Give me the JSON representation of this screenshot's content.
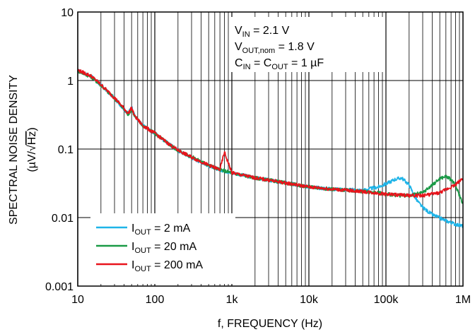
{
  "chart_data": {
    "type": "line",
    "xlabel": "f, FREQUENCY (Hz)",
    "ylabel_line1": "SPECTRAL NOISE DENSITY",
    "ylabel_line2_prefix": "(µV/√",
    "ylabel_line2_rad": "Hz",
    "ylabel_line2_suffix": ")",
    "x_scale": "log",
    "y_scale": "log",
    "xlim": [
      10,
      1000000
    ],
    "ylim": [
      0.001,
      10
    ],
    "x_ticks": [
      10,
      100,
      1000,
      10000,
      100000,
      1000000
    ],
    "x_tick_labels": [
      "10",
      "100",
      "1k",
      "10k",
      "100k",
      "1M"
    ],
    "y_ticks": [
      0.001,
      0.01,
      0.1,
      1,
      10
    ],
    "y_tick_labels": [
      "0.001",
      "0.01",
      "0.1",
      "1",
      "10"
    ],
    "grid": true,
    "legend_position": "bottom-left",
    "conditions": {
      "vin": {
        "v": "V",
        "sub": "IN",
        "rest": " = 2.1 V"
      },
      "vout": {
        "v": "V",
        "sub": "OUT,nom",
        "rest": " = 1.8 V"
      },
      "cap": {
        "c1": "C",
        "sub1": "IN",
        "mid": " = C",
        "sub2": "OUT",
        "rest": " = 1 µF"
      }
    },
    "series": [
      {
        "name_main": "I",
        "name_sub": "OUT",
        "name_rest": " = 2 mA",
        "color": "#1fb4e8",
        "x": [
          10,
          15,
          20,
          30,
          40,
          45,
          50,
          55,
          70,
          100,
          150,
          200,
          300,
          500,
          700,
          1000,
          2000,
          5000,
          10000,
          20000,
          50000,
          80000,
          100000,
          130000,
          160000,
          200000,
          250000,
          300000,
          400000,
          600000,
          800000,
          1000000
        ],
        "y": [
          1.4,
          1.15,
          0.85,
          0.55,
          0.38,
          0.33,
          0.42,
          0.3,
          0.22,
          0.17,
          0.12,
          0.095,
          0.075,
          0.057,
          0.05,
          0.045,
          0.038,
          0.032,
          0.028,
          0.026,
          0.025,
          0.028,
          0.031,
          0.036,
          0.038,
          0.03,
          0.018,
          0.014,
          0.011,
          0.009,
          0.008,
          0.0075
        ]
      },
      {
        "name_main": "I",
        "name_sub": "OUT",
        "name_rest": " = 20 mA",
        "color": "#1a9a46",
        "x": [
          10,
          15,
          20,
          30,
          40,
          45,
          50,
          55,
          70,
          100,
          150,
          200,
          300,
          500,
          700,
          1000,
          2000,
          5000,
          10000,
          20000,
          50000,
          80000,
          100000,
          150000,
          200000,
          300000,
          400000,
          500000,
          600000,
          700000,
          800000,
          1000000
        ],
        "y": [
          1.38,
          1.13,
          0.85,
          0.55,
          0.38,
          0.32,
          0.38,
          0.3,
          0.22,
          0.17,
          0.12,
          0.095,
          0.077,
          0.058,
          0.05,
          0.045,
          0.038,
          0.032,
          0.028,
          0.026,
          0.024,
          0.023,
          0.022,
          0.021,
          0.021,
          0.023,
          0.03,
          0.037,
          0.04,
          0.036,
          0.029,
          0.016
        ]
      },
      {
        "name_main": "I",
        "name_sub": "OUT",
        "name_rest": " = 200 mA",
        "color": "#e8141c",
        "x": [
          10,
          15,
          20,
          30,
          40,
          45,
          50,
          55,
          70,
          100,
          150,
          200,
          300,
          500,
          700,
          800,
          1000,
          2000,
          5000,
          10000,
          20000,
          50000,
          100000,
          200000,
          300000,
          500000,
          700000,
          800000,
          1000000
        ],
        "y": [
          1.42,
          1.16,
          0.87,
          0.56,
          0.39,
          0.33,
          0.4,
          0.3,
          0.22,
          0.17,
          0.12,
          0.096,
          0.076,
          0.058,
          0.05,
          0.09,
          0.045,
          0.038,
          0.032,
          0.028,
          0.026,
          0.024,
          0.022,
          0.021,
          0.021,
          0.023,
          0.028,
          0.03,
          0.038
        ]
      }
    ]
  }
}
